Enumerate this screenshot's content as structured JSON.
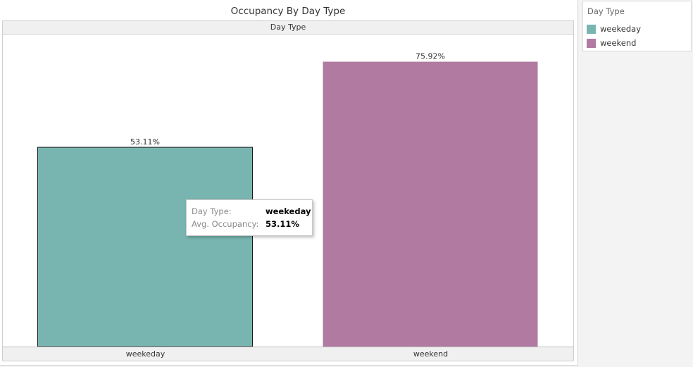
{
  "chart_data": {
    "type": "bar",
    "title": "Occupancy By Day Type",
    "header": "Day Type",
    "categories": [
      "weekeday",
      "weekend"
    ],
    "values": [
      53.11,
      75.92
    ],
    "value_labels": [
      "53.11%",
      "75.92%"
    ],
    "colors": [
      "#79b5b0",
      "#b07aa1"
    ],
    "ylim": [
      0,
      80
    ],
    "ylabel": "",
    "xlabel": "",
    "grid": false,
    "legend_position": "right"
  },
  "legend": {
    "title": "Day Type",
    "items": [
      {
        "label": "weekeday",
        "color": "#79b5b0"
      },
      {
        "label": "weekend",
        "color": "#b07aa1"
      }
    ]
  },
  "tooltip": {
    "row1_key": "Day Type:",
    "row1_value": "weekeday",
    "row2_key": "Avg. Occupancy:",
    "row2_value": "53.11%"
  }
}
